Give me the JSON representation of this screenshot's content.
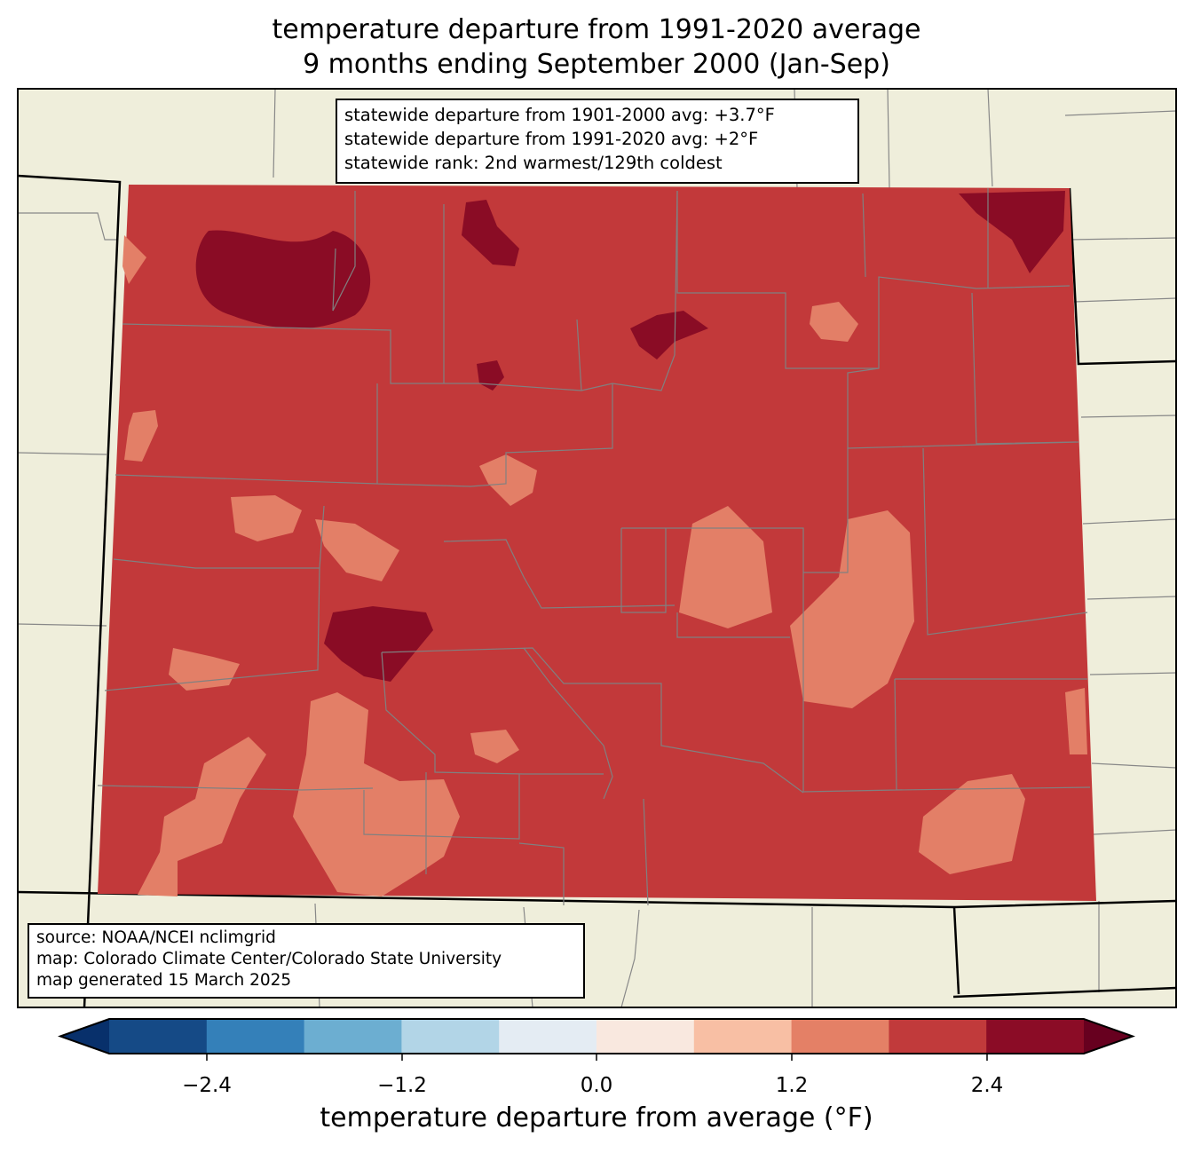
{
  "title_line1": "temperature departure from 1991-2020 average",
  "title_line2": "9 months ending September 2000 (Jan-Sep)",
  "stats": {
    "line1": "statewide departure from 1901-2000 avg: +3.7°F",
    "line2": "statewide departure from 1991-2020 avg: +2°F",
    "line3": "statewide rank: 2nd warmest/129th coldest"
  },
  "credits": {
    "line1": "source: NOAA/NCEI nclimgrid",
    "line2": "map: Colorado Climate Center/Colorado State University",
    "line3": "map generated 15 March 2025"
  },
  "colorbar": {
    "label": "temperature departure from average (°F)",
    "ticks": [
      "−2.4",
      "−1.2",
      "0.0",
      "1.2",
      "2.4"
    ],
    "colors": [
      "#08306b",
      "#154a86",
      "#3480b9",
      "#6caed1",
      "#b2d5e7",
      "#e4ecf3",
      "#f9e8df",
      "#f8bfa4",
      "#e48066",
      "#c13a3b",
      "#8b0c26",
      "#67001f"
    ],
    "bounds": [
      -3.0,
      -2.4,
      -1.8,
      -1.2,
      -0.6,
      0.0,
      0.6,
      1.2,
      1.8,
      2.4,
      3.0
    ]
  },
  "map_colors": {
    "land": "#efeedb",
    "base": "#c2393a",
    "dark": "#8a0c25",
    "light": "#e37f67"
  }
}
